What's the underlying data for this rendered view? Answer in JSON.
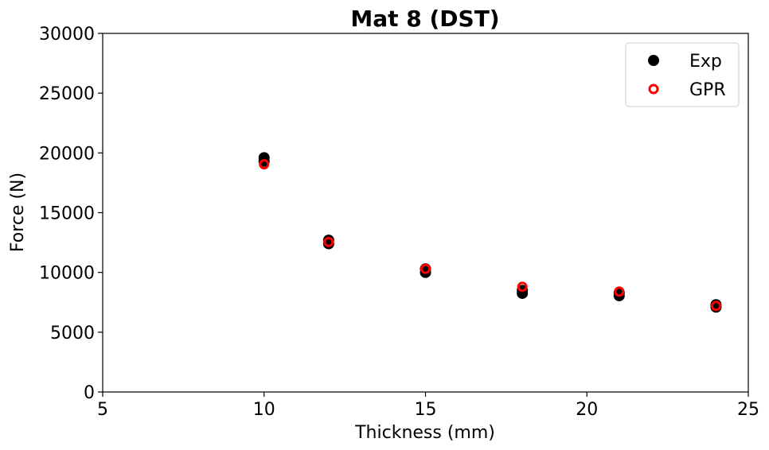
{
  "chart_data": {
    "type": "scatter",
    "title": "Mat 8 (DST)",
    "xlabel": "Thickness (mm)",
    "ylabel": "Force (N)",
    "xlim": [
      5,
      25
    ],
    "ylim": [
      0,
      30000
    ],
    "xticks": [
      5,
      10,
      15,
      20,
      25
    ],
    "yticks": [
      0,
      5000,
      10000,
      15000,
      20000,
      25000,
      30000
    ],
    "grid": false,
    "legend_position": "top-right",
    "series": [
      {
        "name": "Exp",
        "marker": "filled-circle",
        "color": "#000000",
        "points": [
          {
            "x": 10,
            "y": 19600
          },
          {
            "x": 10,
            "y": 19300
          },
          {
            "x": 12,
            "y": 12700
          },
          {
            "x": 12,
            "y": 12400
          },
          {
            "x": 15,
            "y": 10300
          },
          {
            "x": 15,
            "y": 10000
          },
          {
            "x": 18,
            "y": 8500
          },
          {
            "x": 18,
            "y": 8250
          },
          {
            "x": 21,
            "y": 8300
          },
          {
            "x": 21,
            "y": 8050
          },
          {
            "x": 24,
            "y": 7300
          },
          {
            "x": 24,
            "y": 7100
          }
        ]
      },
      {
        "name": "GPR",
        "marker": "hollow-circle",
        "color": "#ff0000",
        "points": [
          {
            "x": 10,
            "y": 19050
          },
          {
            "x": 12,
            "y": 12550
          },
          {
            "x": 15,
            "y": 10300
          },
          {
            "x": 18,
            "y": 8800
          },
          {
            "x": 21,
            "y": 8400
          },
          {
            "x": 24,
            "y": 7200
          }
        ]
      }
    ]
  }
}
